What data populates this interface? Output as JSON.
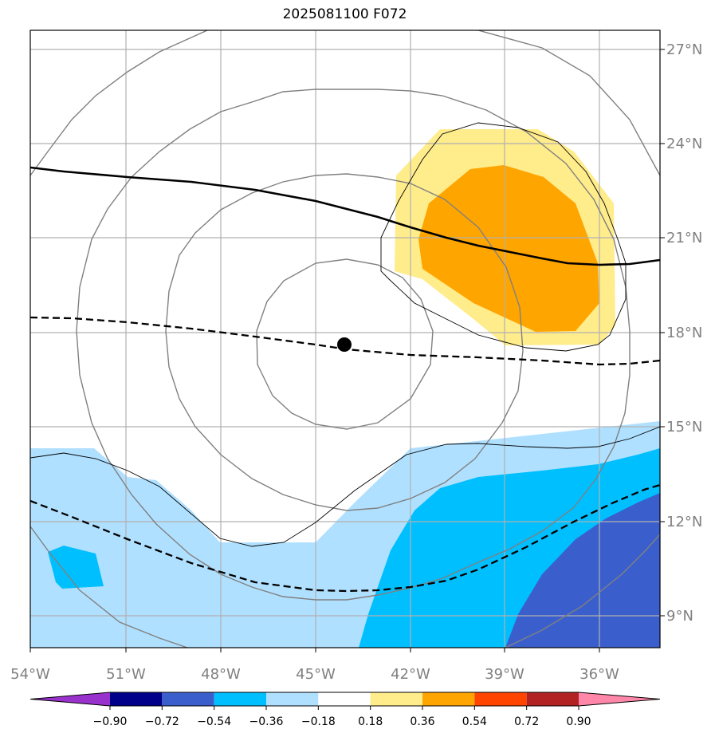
{
  "title": "2025081100 F072",
  "lon_labels": [
    "54°W",
    "51°W",
    "48°W",
    "45°W",
    "42°W",
    "39°W",
    "36°W"
  ],
  "lat_labels": [
    "27°N",
    "24°N",
    "21°N",
    "18°N",
    "15°N",
    "12°N",
    "9°N"
  ],
  "storm_center": {
    "lon": -44.1,
    "lat": 17.6
  },
  "colorbar": {
    "ticks": [
      "−0.90",
      "−0.72",
      "−0.54",
      "−0.36",
      "−0.18",
      "0.18",
      "0.36",
      "0.54",
      "0.72",
      "0.90"
    ],
    "colors": [
      "#9932cc",
      "#00008b",
      "#3a5fcd",
      "#00bfff",
      "#b0e0ff",
      "#ffffff",
      "#ffec8b",
      "#ffa500",
      "#ff4500",
      "#b22222",
      "#ff88aa"
    ]
  }
}
